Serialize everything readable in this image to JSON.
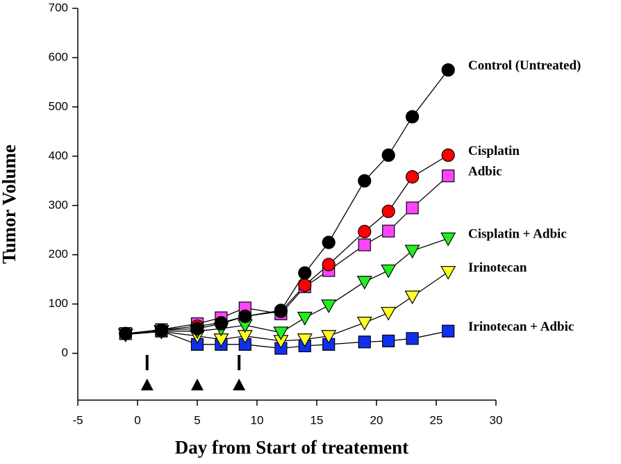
{
  "chart_data": {
    "type": "line",
    "x_label": "Day from Start of treatement",
    "y_label": "Tumor Volume",
    "xlim": [
      -5,
      30
    ],
    "xticks": [
      -5,
      0,
      5,
      10,
      15,
      20,
      25,
      30
    ],
    "ylim": [
      -95,
      700
    ],
    "yticks": [
      0,
      100,
      200,
      300,
      400,
      500,
      600,
      700
    ],
    "x": [
      -1,
      2,
      5,
      7,
      9,
      12,
      14,
      16,
      19,
      21,
      23,
      26
    ],
    "series": [
      {
        "name": "Control (Untreated)",
        "color": "#000000",
        "marker": "circle",
        "values": [
          40,
          47,
          50,
          60,
          75,
          87,
          163,
          225,
          350,
          402,
          480,
          575
        ]
      },
      {
        "name": "Cisplatin",
        "color": "#ff0000",
        "marker": "circle",
        "values": [
          40,
          47,
          55,
          62,
          75,
          85,
          138,
          180,
          247,
          288,
          358,
          402
        ]
      },
      {
        "name": "Adbic",
        "color": "#ff44ff",
        "marker": "square",
        "values": [
          40,
          48,
          60,
          72,
          92,
          80,
          135,
          168,
          220,
          248,
          295,
          360
        ]
      },
      {
        "name": "Cisplatin + Adbic",
        "color": "#22ee22",
        "marker": "triangle-down",
        "values": [
          38,
          45,
          45,
          50,
          57,
          42,
          72,
          97,
          145,
          168,
          208,
          233
        ]
      },
      {
        "name": "Irinotecan",
        "color": "#ffff22",
        "marker": "triangle-down",
        "values": [
          38,
          44,
          35,
          28,
          35,
          25,
          28,
          35,
          62,
          82,
          115,
          165
        ]
      },
      {
        "name": "Irinotecan + Adbic",
        "color": "#1030ee",
        "marker": "square",
        "values": [
          40,
          45,
          18,
          18,
          18,
          10,
          15,
          18,
          23,
          25,
          30,
          45
        ]
      }
    ],
    "treatment_days": [
      0.8,
      5,
      8.5
    ],
    "dose_marks": [
      0.8,
      8.5
    ]
  }
}
